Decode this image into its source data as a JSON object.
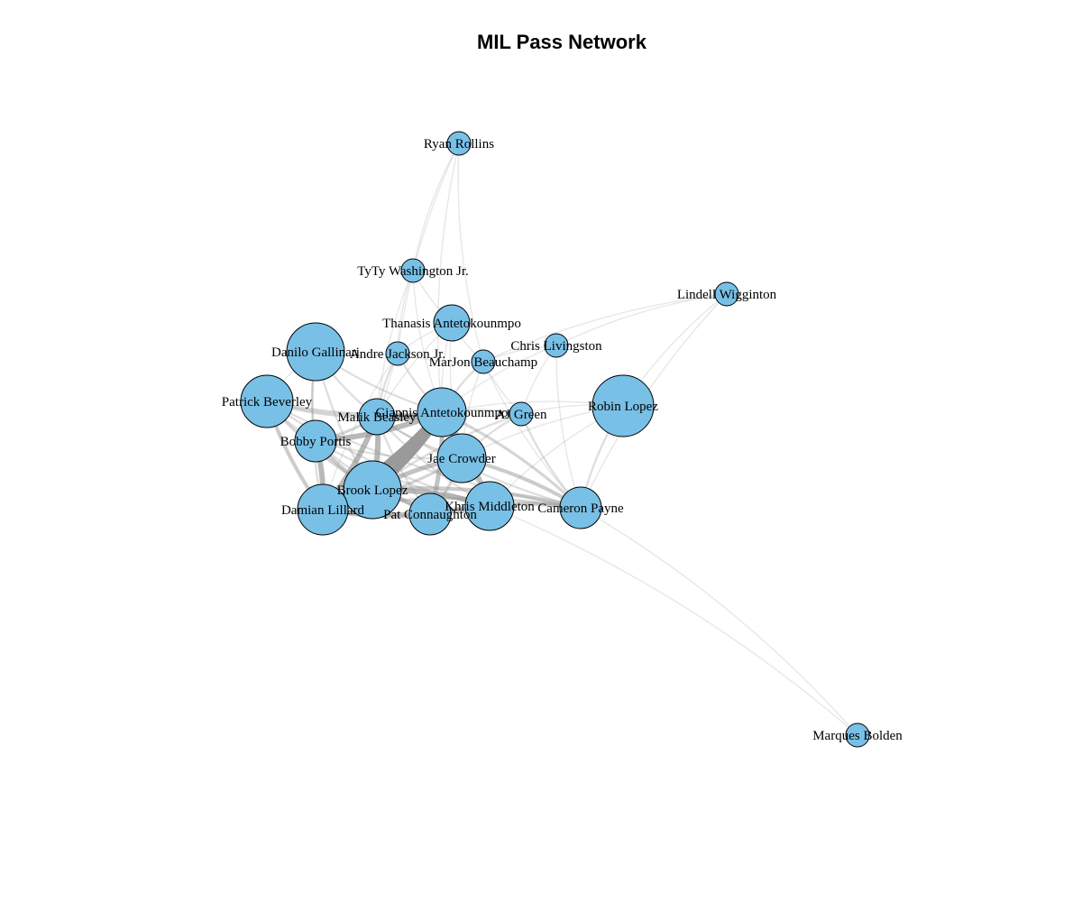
{
  "title": "MIL Pass Network",
  "colors": {
    "node_fill": "#78c0e6",
    "node_stroke": "#000000",
    "edge": "#9a9a9a"
  },
  "nodes": [
    {
      "id": "ryan-rollins",
      "label": "Ryan Rollins",
      "size": 1
    },
    {
      "id": "tyty-washington",
      "label": "TyTy Washington Jr.",
      "size": 1
    },
    {
      "id": "lindell-wigginton",
      "label": "Lindell Wigginton",
      "size": 1
    },
    {
      "id": "thanasis-antetokounmpo",
      "label": "Thanasis Antetokounmpo",
      "size": 3
    },
    {
      "id": "chris-livingston",
      "label": "Chris Livingston",
      "size": 1
    },
    {
      "id": "danilo-gallinari",
      "label": "Danilo Gallinari",
      "size": 8
    },
    {
      "id": "andre-jackson",
      "label": "Andre Jackson Jr.",
      "size": 1
    },
    {
      "id": "marjon-beauchamp",
      "label": "MarJon Beauchamp",
      "size": 1
    },
    {
      "id": "patrick-beverley",
      "label": "Patrick Beverley",
      "size": 7
    },
    {
      "id": "giannis-antetokounmpo",
      "label": "Giannis Antetokounmpo",
      "size": 5
    },
    {
      "id": "aj-green",
      "label": "AJ Green",
      "size": 1
    },
    {
      "id": "robin-lopez",
      "label": "Robin Lopez",
      "size": 9
    },
    {
      "id": "malik-beasley",
      "label": "Malik Beasley",
      "size": 3
    },
    {
      "id": "bobby-portis",
      "label": "Bobby Portis",
      "size": 4
    },
    {
      "id": "jae-crowder",
      "label": "Jae Crowder",
      "size": 5
    },
    {
      "id": "brook-lopez",
      "label": "Brook Lopez",
      "size": 8
    },
    {
      "id": "damian-lillard",
      "label": "Damian Lillard",
      "size": 6
    },
    {
      "id": "pat-connaughton",
      "label": "Pat Connaughton",
      "size": 4
    },
    {
      "id": "khris-middleton",
      "label": "Khris Middleton",
      "size": 5
    },
    {
      "id": "cameron-payne",
      "label": "Cameron Payne",
      "size": 4
    },
    {
      "id": "marques-bolden",
      "label": "Marques Bolden",
      "size": 1
    }
  ],
  "edges": [
    [
      "brook-lopez",
      "giannis-antetokounmpo",
      10
    ],
    [
      "damian-lillard",
      "giannis-antetokounmpo",
      10
    ],
    [
      "damian-lillard",
      "brook-lopez",
      8
    ],
    [
      "malik-beasley",
      "giannis-antetokounmpo",
      7
    ],
    [
      "brook-lopez",
      "malik-beasley",
      6
    ],
    [
      "damian-lillard",
      "malik-beasley",
      6
    ],
    [
      "bobby-portis",
      "giannis-antetokounmpo",
      6
    ],
    [
      "khris-middleton",
      "brook-lopez",
      6
    ],
    [
      "pat-connaughton",
      "brook-lopez",
      5
    ],
    [
      "damian-lillard",
      "bobby-portis",
      6
    ],
    [
      "khris-middleton",
      "giannis-antetokounmpo",
      5
    ],
    [
      "jae-crowder",
      "giannis-antetokounmpo",
      5
    ],
    [
      "jae-crowder",
      "brook-lopez",
      5
    ],
    [
      "damian-lillard",
      "khris-middleton",
      5
    ],
    [
      "pat-connaughton",
      "giannis-antetokounmpo",
      5
    ],
    [
      "damian-lillard",
      "pat-connaughton",
      4
    ],
    [
      "cameron-payne",
      "jae-crowder",
      4
    ],
    [
      "cameron-payne",
      "brook-lopez",
      4
    ],
    [
      "cameron-payne",
      "giannis-antetokounmpo",
      3
    ],
    [
      "patrick-beverley",
      "giannis-antetokounmpo",
      3
    ],
    [
      "patrick-beverley",
      "brook-lopez",
      3
    ],
    [
      "patrick-beverley",
      "damian-lillard",
      4
    ],
    [
      "patrick-beverley",
      "malik-beasley",
      3
    ],
    [
      "bobby-portis",
      "brook-lopez",
      4
    ],
    [
      "bobby-portis",
      "malik-beasley",
      3
    ],
    [
      "khris-middleton",
      "pat-connaughton",
      3
    ],
    [
      "khris-middleton",
      "jae-crowder",
      3
    ],
    [
      "cameron-payne",
      "khris-middleton",
      3
    ],
    [
      "cameron-payne",
      "damian-lillard",
      3
    ],
    [
      "cameron-payne",
      "pat-connaughton",
      3
    ],
    [
      "pat-connaughton",
      "jae-crowder",
      3
    ],
    [
      "damian-lillard",
      "jae-crowder",
      3
    ],
    [
      "patrick-beverley",
      "bobby-portis",
      2
    ],
    [
      "danilo-gallinari",
      "giannis-antetokounmpo",
      2
    ],
    [
      "danilo-gallinari",
      "brook-lopez",
      2
    ],
    [
      "danilo-gallinari",
      "damian-lillard",
      2
    ],
    [
      "danilo-gallinari",
      "malik-beasley",
      2
    ],
    [
      "danilo-gallinari",
      "bobby-portis",
      2
    ],
    [
      "aj-green",
      "giannis-antetokounmpo",
      2
    ],
    [
      "aj-green",
      "cameron-payne",
      2
    ],
    [
      "aj-green",
      "brook-lopez",
      2
    ],
    [
      "aj-green",
      "jae-crowder",
      2
    ],
    [
      "robin-lopez",
      "cameron-payne",
      2
    ],
    [
      "robin-lopez",
      "giannis-antetokounmpo",
      1
    ],
    [
      "robin-lopez",
      "jae-crowder",
      1
    ],
    [
      "robin-lopez",
      "aj-green",
      1
    ],
    [
      "robin-lopez",
      "khris-middleton",
      1
    ],
    [
      "andre-jackson",
      "giannis-antetokounmpo",
      2
    ],
    [
      "andre-jackson",
      "malik-beasley",
      2
    ],
    [
      "andre-jackson",
      "brook-lopez",
      1
    ],
    [
      "andre-jackson",
      "damian-lillard",
      1
    ],
    [
      "andre-jackson",
      "marjon-beauchamp",
      1
    ],
    [
      "marjon-beauchamp",
      "giannis-antetokounmpo",
      2
    ],
    [
      "marjon-beauchamp",
      "jae-crowder",
      1
    ],
    [
      "marjon-beauchamp",
      "aj-green",
      1
    ],
    [
      "marjon-beauchamp",
      "cameron-payne",
      1
    ],
    [
      "thanasis-antetokounmpo",
      "giannis-antetokounmpo",
      1
    ],
    [
      "thanasis-antetokounmpo",
      "andre-jackson",
      1
    ],
    [
      "thanasis-antetokounmpo",
      "marjon-beauchamp",
      1
    ],
    [
      "thanasis-antetokounmpo",
      "malik-beasley",
      1
    ],
    [
      "thanasis-antetokounmpo",
      "jae-crowder",
      1
    ],
    [
      "chris-livingston",
      "aj-green",
      1
    ],
    [
      "chris-livingston",
      "marjon-beauchamp",
      1
    ],
    [
      "chris-livingston",
      "giannis-antetokounmpo",
      1
    ],
    [
      "chris-livingston",
      "cameron-payne",
      1
    ],
    [
      "tyty-washington",
      "andre-jackson",
      1
    ],
    [
      "tyty-washington",
      "giannis-antetokounmpo",
      1
    ],
    [
      "tyty-washington",
      "thanasis-antetokounmpo",
      1
    ],
    [
      "tyty-washington",
      "malik-beasley",
      1
    ],
    [
      "ryan-rollins",
      "tyty-washington",
      1
    ],
    [
      "ryan-rollins",
      "andre-jackson",
      1
    ],
    [
      "ryan-rollins",
      "marjon-beauchamp",
      1
    ],
    [
      "ryan-rollins",
      "giannis-antetokounmpo",
      1
    ],
    [
      "lindell-wigginton",
      "chris-livingston",
      1
    ],
    [
      "lindell-wigginton",
      "marjon-beauchamp",
      1
    ],
    [
      "lindell-wigginton",
      "cameron-payne",
      1
    ],
    [
      "lindell-wigginton",
      "robin-lopez",
      1
    ],
    [
      "marques-bolden",
      "cameron-payne",
      1
    ],
    [
      "marques-bolden",
      "khris-middleton",
      1
    ],
    [
      "patrick-beverley",
      "khris-middleton",
      2
    ],
    [
      "patrick-beverley",
      "cameron-payne",
      2
    ],
    [
      "bobby-portis",
      "khris-middleton",
      2
    ],
    [
      "bobby-portis",
      "jae-crowder",
      2
    ],
    [
      "bobby-portis",
      "pat-connaughton",
      2
    ],
    [
      "malik-beasley",
      "jae-crowder",
      2
    ],
    [
      "malik-beasley",
      "khris-middleton",
      2
    ],
    [
      "malik-beasley",
      "pat-connaughton",
      2
    ],
    [
      "malik-beasley",
      "cameron-payne",
      2
    ],
    [
      "danilo-gallinari",
      "patrick-beverley",
      1
    ],
    [
      "danilo-gallinari",
      "andre-jackson",
      1
    ]
  ]
}
